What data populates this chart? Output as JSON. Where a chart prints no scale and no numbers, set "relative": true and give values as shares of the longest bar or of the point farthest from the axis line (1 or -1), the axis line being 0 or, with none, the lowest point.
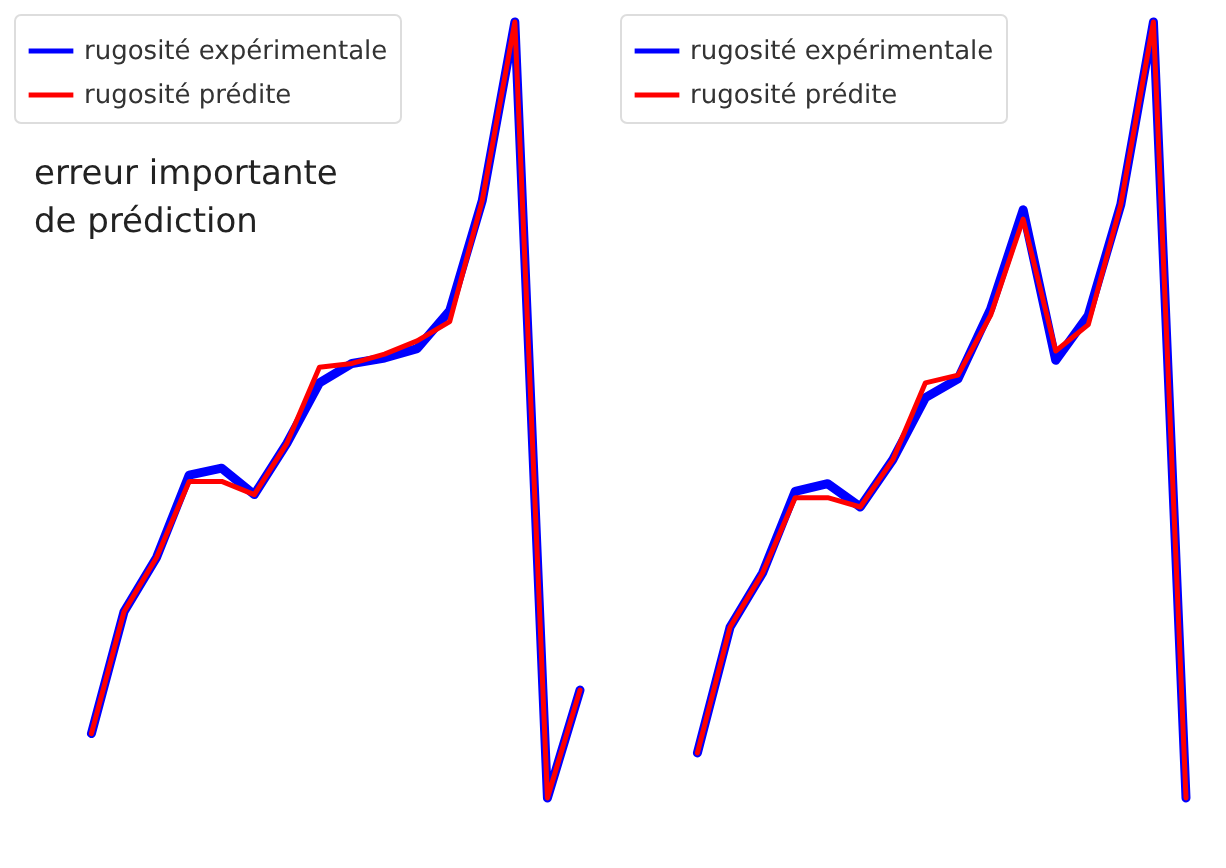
{
  "chart_data": [
    {
      "type": "line",
      "relative": true,
      "legend": "top left",
      "annotations": [
        "erreur importante\nde prédiction"
      ],
      "categories": [
        null,
        null,
        null,
        null,
        null,
        null,
        null,
        null,
        null,
        null,
        null,
        null,
        null,
        null,
        null,
        null
      ],
      "series": [
        {
          "name": "rugosité expérimentale",
          "color": "#0000ff",
          "values": [
            0.083,
            0.24,
            0.31,
            0.416,
            0.425,
            0.391,
            0.457,
            0.535,
            0.56,
            0.567,
            0.579,
            0.628,
            0.77,
            1,
            0,
            0.139
          ]
        },
        {
          "name": "rugosité prédite",
          "color": "#ff0000",
          "values": [
            0.083,
            0.24,
            0.31,
            0.408,
            0.408,
            0.391,
            0.457,
            0.555,
            0.56,
            0.572,
            0.589,
            0.614,
            0.77,
            1,
            0,
            0.139
          ]
        }
      ]
    },
    {
      "type": "line",
      "relative": true,
      "legend": "top left",
      "categories": [
        null,
        null,
        null,
        null,
        null,
        null,
        null,
        null,
        null,
        null,
        null,
        null,
        null,
        null,
        null,
        null
      ],
      "series": [
        {
          "name": "rugosité expérimentale",
          "color": "#0000ff",
          "values": [
            0.058,
            0.22,
            0.29,
            0.395,
            0.405,
            0.375,
            0.436,
            0.516,
            0.54,
            0.63,
            0.758,
            0.564,
            0.622,
            0.765,
            1,
            0
          ]
        },
        {
          "name": "rugosité prédite",
          "color": "#ff0000",
          "values": [
            0.058,
            0.22,
            0.29,
            0.387,
            0.387,
            0.375,
            0.436,
            0.535,
            0.545,
            0.622,
            0.746,
            0.576,
            0.61,
            0.765,
            1,
            0
          ]
        }
      ]
    }
  ]
}
